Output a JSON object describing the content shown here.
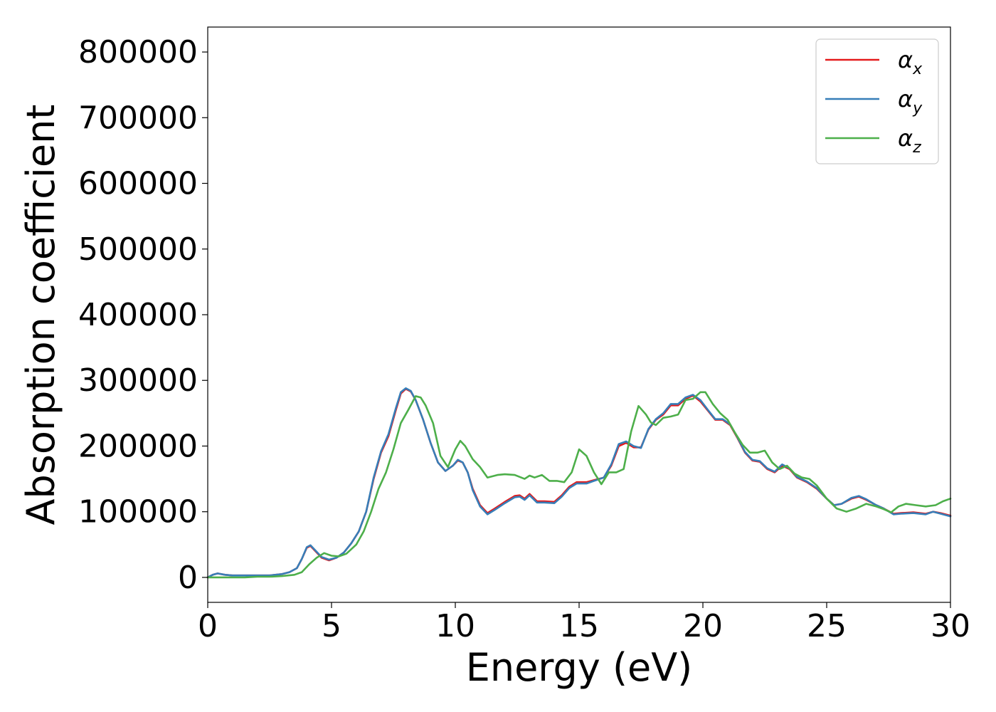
{
  "chart_data": {
    "type": "line",
    "title": "",
    "xlabel": "Energy (eV)",
    "ylabel": "Absorption coefficient",
    "xlim": [
      0,
      30
    ],
    "ylim": [
      -38000,
      838000
    ],
    "xticks": [
      0,
      5,
      10,
      15,
      20,
      25,
      30
    ],
    "yticks": [
      0,
      100000,
      200000,
      300000,
      400000,
      500000,
      600000,
      700000,
      800000
    ],
    "grid": false,
    "legend_position": "top-right",
    "series": [
      {
        "name": "αx",
        "legend_base": "α",
        "legend_sub": "x",
        "color": "#e41a1c",
        "x": [
          0,
          0.2,
          0.4,
          0.7,
          1.0,
          1.5,
          2.0,
          2.5,
          3.0,
          3.3,
          3.6,
          3.8,
          4.0,
          4.15,
          4.3,
          4.6,
          4.9,
          5.2,
          5.5,
          5.8,
          6.1,
          6.4,
          6.7,
          7.0,
          7.3,
          7.6,
          7.8,
          8.0,
          8.2,
          8.4,
          8.7,
          9.0,
          9.3,
          9.6,
          9.9,
          10.1,
          10.3,
          10.5,
          10.7,
          11.0,
          11.3,
          11.6,
          12.0,
          12.4,
          12.6,
          12.8,
          13.0,
          13.3,
          13.6,
          14.0,
          14.3,
          14.6,
          14.9,
          15.3,
          15.6,
          16.0,
          16.3,
          16.6,
          16.9,
          17.2,
          17.5,
          17.8,
          18.1,
          18.4,
          18.7,
          19.0,
          19.3,
          19.6,
          19.9,
          20.2,
          20.5,
          20.8,
          21.1,
          21.4,
          21.7,
          22.0,
          22.3,
          22.6,
          22.9,
          23.2,
          23.5,
          23.8,
          24.2,
          24.6,
          25.0,
          25.3,
          25.6,
          26.0,
          26.3,
          26.6,
          27.0,
          27.3,
          27.7,
          28.0,
          28.5,
          29.0,
          29.3,
          29.6,
          30.0
        ],
        "y": [
          0,
          4000,
          6000,
          4000,
          3000,
          3000,
          3000,
          3000,
          5000,
          8000,
          14000,
          28000,
          45000,
          48000,
          42000,
          30000,
          26000,
          30000,
          38000,
          52000,
          70000,
          100000,
          150000,
          190000,
          215000,
          255000,
          280000,
          287000,
          283000,
          270000,
          240000,
          205000,
          175000,
          162000,
          170000,
          178000,
          175000,
          160000,
          135000,
          110000,
          98000,
          105000,
          115000,
          124000,
          125000,
          120000,
          127000,
          116000,
          116000,
          115000,
          125000,
          138000,
          145000,
          145000,
          148000,
          152000,
          170000,
          200000,
          205000,
          198000,
          198000,
          225000,
          240000,
          248000,
          262000,
          262000,
          272000,
          277000,
          268000,
          254000,
          240000,
          240000,
          232000,
          212000,
          190000,
          178000,
          176000,
          165000,
          160000,
          170000,
          165000,
          152000,
          145000,
          135000,
          120000,
          110000,
          112000,
          120000,
          123000,
          118000,
          110000,
          105000,
          97000,
          98000,
          99000,
          97000,
          100000,
          98000,
          94000
        ]
      },
      {
        "name": "αy",
        "legend_base": "α",
        "legend_sub": "y",
        "color": "#377eb8",
        "x": [
          0,
          0.2,
          0.4,
          0.7,
          1.0,
          1.5,
          2.0,
          2.5,
          3.0,
          3.3,
          3.6,
          3.8,
          4.0,
          4.15,
          4.3,
          4.6,
          4.9,
          5.2,
          5.5,
          5.8,
          6.1,
          6.4,
          6.7,
          7.0,
          7.3,
          7.6,
          7.8,
          8.0,
          8.2,
          8.4,
          8.7,
          9.0,
          9.3,
          9.6,
          9.9,
          10.1,
          10.3,
          10.5,
          10.7,
          11.0,
          11.3,
          11.6,
          12.0,
          12.4,
          12.6,
          12.8,
          13.0,
          13.3,
          13.6,
          14.0,
          14.3,
          14.6,
          14.9,
          15.3,
          15.6,
          16.0,
          16.3,
          16.6,
          16.9,
          17.2,
          17.5,
          17.8,
          18.1,
          18.4,
          18.7,
          19.0,
          19.3,
          19.6,
          19.9,
          20.2,
          20.5,
          20.8,
          21.1,
          21.4,
          21.7,
          22.0,
          22.3,
          22.6,
          22.9,
          23.2,
          23.5,
          23.8,
          24.2,
          24.6,
          25.0,
          25.3,
          25.6,
          26.0,
          26.3,
          26.6,
          27.0,
          27.3,
          27.7,
          28.0,
          28.5,
          29.0,
          29.3,
          29.6,
          30.0
        ],
        "y": [
          0,
          4000,
          6000,
          4000,
          3000,
          3000,
          3000,
          3000,
          5000,
          8000,
          14000,
          28000,
          46000,
          49000,
          43000,
          31000,
          27000,
          30000,
          38000,
          52000,
          70000,
          100000,
          152000,
          192000,
          218000,
          258000,
          282000,
          288000,
          284000,
          270000,
          240000,
          205000,
          175000,
          162000,
          170000,
          179000,
          175000,
          160000,
          133000,
          108000,
          96000,
          103000,
          113000,
          122000,
          123000,
          118000,
          125000,
          114000,
          114000,
          113000,
          123000,
          136000,
          143000,
          143000,
          147000,
          152000,
          172000,
          203000,
          207000,
          200000,
          197000,
          226000,
          241000,
          250000,
          264000,
          264000,
          274000,
          278000,
          270000,
          255000,
          241000,
          241000,
          233000,
          213000,
          191000,
          179000,
          177000,
          166000,
          161000,
          172000,
          166000,
          153000,
          146000,
          136000,
          120000,
          110000,
          112000,
          121000,
          124000,
          119000,
          110000,
          105000,
          96000,
          97000,
          98000,
          96000,
          100000,
          97000,
          93000
        ]
      },
      {
        "name": "αz",
        "legend_base": "α",
        "legend_sub": "z",
        "color": "#4daf4a",
        "x": [
          0,
          0.5,
          1.0,
          1.5,
          2.0,
          2.5,
          3.0,
          3.5,
          3.8,
          4.1,
          4.4,
          4.7,
          5.0,
          5.3,
          5.6,
          6.0,
          6.3,
          6.6,
          6.9,
          7.2,
          7.5,
          7.8,
          8.1,
          8.4,
          8.6,
          8.8,
          9.1,
          9.4,
          9.7,
          10.0,
          10.2,
          10.4,
          10.7,
          11.0,
          11.3,
          11.7,
          12.0,
          12.4,
          12.8,
          13.0,
          13.2,
          13.5,
          13.8,
          14.1,
          14.4,
          14.7,
          15.0,
          15.3,
          15.6,
          15.9,
          16.2,
          16.5,
          16.8,
          17.1,
          17.4,
          17.7,
          17.9,
          18.1,
          18.4,
          18.7,
          19.0,
          19.3,
          19.6,
          19.9,
          20.1,
          20.4,
          20.7,
          21.0,
          21.3,
          21.6,
          21.9,
          22.2,
          22.5,
          22.8,
          23.1,
          23.4,
          23.7,
          24.0,
          24.3,
          24.6,
          25.0,
          25.4,
          25.8,
          26.2,
          26.6,
          27.0,
          27.3,
          27.6,
          27.9,
          28.2,
          28.6,
          29.0,
          29.4,
          29.7,
          30.0
        ],
        "y": [
          0,
          0,
          0,
          0,
          1000,
          1000,
          2000,
          4000,
          8000,
          20000,
          30000,
          37000,
          33000,
          32000,
          36000,
          50000,
          70000,
          100000,
          135000,
          160000,
          195000,
          235000,
          255000,
          276000,
          274000,
          262000,
          235000,
          185000,
          168000,
          195000,
          208000,
          200000,
          180000,
          168000,
          152000,
          156000,
          157000,
          156000,
          150000,
          155000,
          152000,
          156000,
          147000,
          147000,
          145000,
          160000,
          195000,
          185000,
          160000,
          142000,
          160000,
          160000,
          165000,
          222000,
          261000,
          248000,
          236000,
          232000,
          243000,
          245000,
          248000,
          270000,
          272000,
          282000,
          282000,
          264000,
          250000,
          240000,
          220000,
          202000,
          190000,
          190000,
          193000,
          175000,
          165000,
          170000,
          158000,
          152000,
          150000,
          140000,
          120000,
          105000,
          100000,
          105000,
          112000,
          108000,
          104000,
          99000,
          108000,
          112000,
          110000,
          108000,
          110000,
          116000,
          120000
        ]
      }
    ]
  }
}
